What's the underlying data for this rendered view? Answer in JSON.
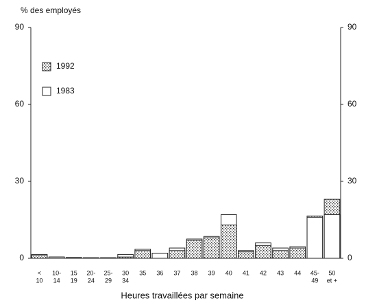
{
  "chart_data": {
    "type": "bar",
    "title": "% des employés",
    "xlabel": "Heures travaillées par semaine",
    "categories": [
      [
        "<",
        "10"
      ],
      [
        "10-",
        "14"
      ],
      [
        "15",
        "19"
      ],
      [
        "20-",
        "24"
      ],
      [
        "25-",
        "29"
      ],
      [
        "30",
        "34"
      ],
      [
        "35"
      ],
      [
        "36"
      ],
      [
        "37"
      ],
      [
        "38"
      ],
      [
        "39"
      ],
      [
        "40"
      ],
      [
        "41"
      ],
      [
        "42"
      ],
      [
        "43"
      ],
      [
        "44"
      ],
      [
        "45-",
        "49"
      ],
      [
        "50",
        "et +"
      ]
    ],
    "series": [
      {
        "name": "1992",
        "color": "#666666",
        "values": [
          1,
          0.5,
          0.3,
          0.2,
          0.2,
          0.5,
          3,
          2,
          3,
          7,
          8,
          13,
          2.5,
          5,
          3,
          4,
          16.5,
          23
        ]
      },
      {
        "name": "1983",
        "color": "#ffffff",
        "values": [
          1.5,
          0.5,
          0.3,
          0.2,
          0.2,
          1.5,
          3.5,
          2,
          4,
          7.5,
          8.5,
          17,
          3,
          6,
          4,
          4.5,
          16,
          17
        ]
      }
    ],
    "ylim": [
      0,
      90
    ],
    "yticks": [
      0,
      30,
      60,
      90
    ]
  }
}
